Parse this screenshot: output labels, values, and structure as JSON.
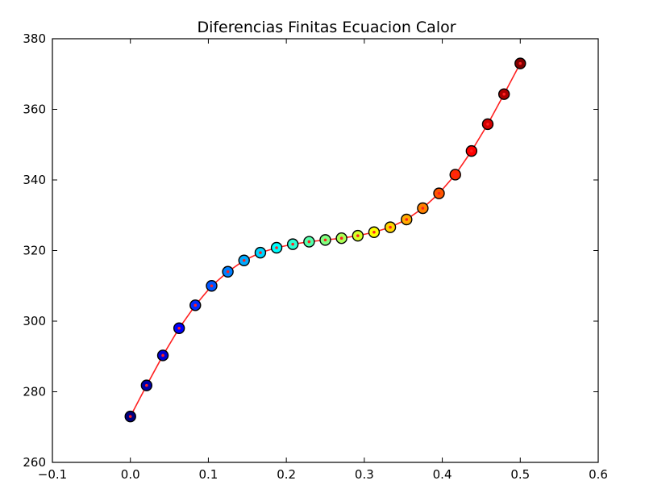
{
  "chart_data": {
    "type": "line",
    "title": "Diferencias Finitas Ecuacion Calor",
    "xlabel": "",
    "ylabel": "",
    "xlim": [
      -0.1,
      0.6
    ],
    "ylim": [
      260,
      380
    ],
    "xticks": [
      -0.1,
      0.0,
      0.1,
      0.2,
      0.3,
      0.4,
      0.5,
      0.6
    ],
    "xtick_labels": [
      "−0.1",
      "0.0",
      "0.1",
      "0.2",
      "0.3",
      "0.4",
      "0.5",
      "0.6"
    ],
    "yticks": [
      260,
      280,
      300,
      320,
      340,
      360,
      380
    ],
    "ytick_labels": [
      "260",
      "280",
      "300",
      "320",
      "340",
      "360",
      "380"
    ],
    "grid": false,
    "line_color": "#ff2020",
    "colormap": "jet",
    "series": [
      {
        "x": [
          0.0,
          0.0208,
          0.0417,
          0.0625,
          0.0833,
          0.1042,
          0.125,
          0.1458,
          0.1667,
          0.1875,
          0.2083,
          0.2292,
          0.25,
          0.2708,
          0.2917,
          0.3125,
          0.3333,
          0.3542,
          0.375,
          0.3958,
          0.4167,
          0.4375,
          0.4583,
          0.4792,
          0.5
        ],
        "values": [
          273,
          281.8,
          290.3,
          298,
          304.5,
          310,
          314,
          317.2,
          319.4,
          320.8,
          321.8,
          322.5,
          323,
          323.5,
          324.2,
          325.2,
          326.6,
          328.8,
          332,
          336.2,
          341.5,
          348.2,
          355.8,
          364.3,
          373
        ]
      }
    ]
  }
}
